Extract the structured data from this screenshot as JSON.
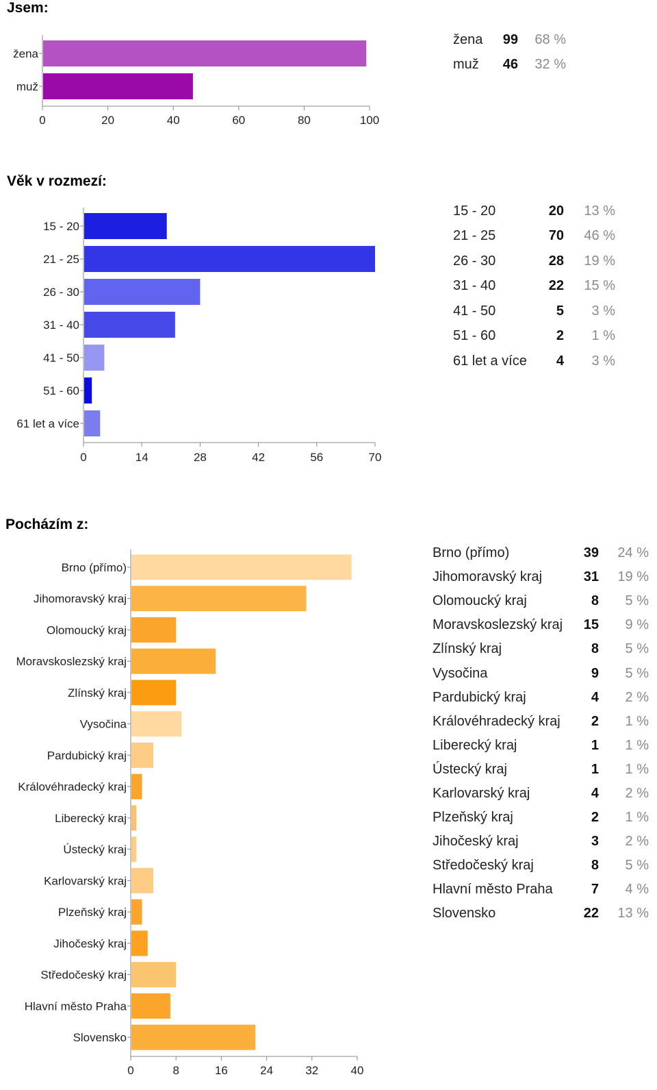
{
  "sections": [
    {
      "title": "Jsem:",
      "chart_data": {
        "type": "bar",
        "orientation": "horizontal",
        "categories": [
          "žena",
          "muž"
        ],
        "values": [
          99,
          46
        ],
        "colors": [
          "#b452c4",
          "#9a0aa8"
        ],
        "xlim": [
          0,
          100
        ],
        "xticks": [
          "0",
          "20",
          "40",
          "60",
          "80",
          "100"
        ]
      },
      "summary": [
        {
          "label": "žena",
          "count": "99",
          "percent": "68 %"
        },
        {
          "label": "muž",
          "count": "46",
          "percent": "32 %"
        }
      ]
    },
    {
      "title": "Věk v rozmezí:",
      "chart_data": {
        "type": "bar",
        "orientation": "horizontal",
        "categories": [
          "15 - 20",
          "21 - 25",
          "26 - 30",
          "31 - 40",
          "41 - 50",
          "51 - 60",
          "61 let a více"
        ],
        "values": [
          20,
          70,
          28,
          22,
          5,
          2,
          4
        ],
        "colors": [
          "#1c1ee0",
          "#3236e6",
          "#6064ee",
          "#4649e8",
          "#9597f2",
          "#0a0ce0",
          "#7b7cee"
        ],
        "xlim": [
          0,
          70
        ],
        "xticks": [
          "0",
          "14",
          "28",
          "42",
          "56",
          "70"
        ]
      },
      "summary": [
        {
          "label": "15 - 20",
          "count": "20",
          "percent": "13 %"
        },
        {
          "label": "21 - 25",
          "count": "70",
          "percent": "46 %"
        },
        {
          "label": "26 - 30",
          "count": "28",
          "percent": "19 %"
        },
        {
          "label": "31 - 40",
          "count": "22",
          "percent": "15 %"
        },
        {
          "label": "41 - 50",
          "count": "5",
          "percent": "3 %"
        },
        {
          "label": "51 - 60",
          "count": "2",
          "percent": "1 %"
        },
        {
          "label": "61 let a více",
          "count": "4",
          "percent": "3 %"
        }
      ]
    },
    {
      "title": "Pocházím z:",
      "chart_data": {
        "type": "bar",
        "orientation": "horizontal",
        "categories": [
          "Brno (přímo)",
          "Jihomoravský kraj",
          "Olomoucký kraj",
          "Moravskoslezský kraj",
          "Zlínský kraj",
          "Vysočina",
          "Pardubický kraj",
          "Královéhradecký kraj",
          "Liberecký kraj",
          "Ústecký kraj",
          "Karlovarský kraj",
          "Plzeňský kraj",
          "Jihočeský kraj",
          "Středočeský kraj",
          "Hlavní město Praha",
          "Slovensko"
        ],
        "values": [
          39,
          31,
          8,
          15,
          8,
          9,
          4,
          2,
          1,
          1,
          4,
          2,
          3,
          8,
          7,
          22
        ],
        "colors": [
          "#ffd9a0",
          "#fbb445",
          "#fba52d",
          "#fbae3a",
          "#fc9c10",
          "#ffd9a0",
          "#ffcc85",
          "#fba52d",
          "#fbc070",
          "#ffcc85",
          "#ffcc85",
          "#fba52d",
          "#fca220",
          "#fbc570",
          "#fba52d",
          "#fbae3a"
        ],
        "xlim": [
          0,
          40
        ],
        "xticks": [
          "0",
          "8",
          "16",
          "24",
          "32",
          "40"
        ]
      },
      "summary": [
        {
          "label": "Brno (přímo)",
          "count": "39",
          "percent": "24 %"
        },
        {
          "label": "Jihomoravský kraj",
          "count": "31",
          "percent": "19 %"
        },
        {
          "label": "Olomoucký kraj",
          "count": "8",
          "percent": "5 %"
        },
        {
          "label": "Moravskoslezský kraj",
          "count": "15",
          "percent": "9 %"
        },
        {
          "label": "Zlínský kraj",
          "count": "8",
          "percent": "5 %"
        },
        {
          "label": "Vysočina",
          "count": "9",
          "percent": "5 %"
        },
        {
          "label": "Pardubický kraj",
          "count": "4",
          "percent": "2 %"
        },
        {
          "label": "Královéhradecký kraj",
          "count": "2",
          "percent": "1 %"
        },
        {
          "label": "Liberecký kraj",
          "count": "1",
          "percent": "1 %"
        },
        {
          "label": "Ústecký kraj",
          "count": "1",
          "percent": "1 %"
        },
        {
          "label": "Karlovarský kraj",
          "count": "4",
          "percent": "2 %"
        },
        {
          "label": "Plzeňský kraj",
          "count": "2",
          "percent": "1 %"
        },
        {
          "label": "Jihočeský kraj",
          "count": "3",
          "percent": "2 %"
        },
        {
          "label": "Středočeský kraj",
          "count": "8",
          "percent": "5 %"
        },
        {
          "label": "Hlavní město Praha",
          "count": "7",
          "percent": "4 %"
        },
        {
          "label": "Slovensko",
          "count": "22",
          "percent": "13 %"
        }
      ]
    }
  ]
}
